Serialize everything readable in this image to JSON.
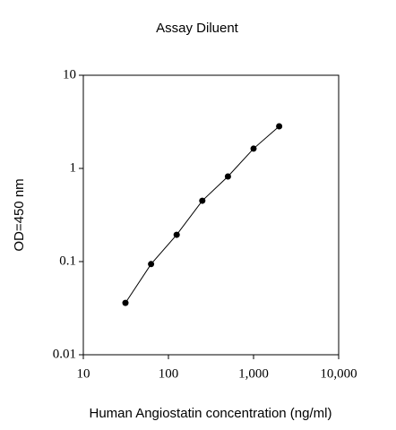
{
  "chart_data": {
    "type": "line",
    "title": "Assay Diluent",
    "x_label": "Human Angiostatin concentration (ng/ml)",
    "y_label": "OD=450 nm",
    "x": [
      31.25,
      62.5,
      125,
      250,
      500,
      1000,
      2000
    ],
    "values": [
      0.036,
      0.094,
      0.194,
      0.45,
      0.82,
      1.63,
      2.83
    ],
    "color": "#000000",
    "marker": "circle",
    "xscale": "log",
    "yscale": "log",
    "xlim": [
      10,
      10000
    ],
    "ylim": [
      0.01,
      10
    ],
    "xticks": [
      10,
      100,
      {
        "value": 1000,
        "label": "1,000"
      },
      {
        "value": 10000,
        "label": "10,000"
      }
    ],
    "yticks": [
      0.01,
      0.1,
      1,
      10
    ]
  }
}
